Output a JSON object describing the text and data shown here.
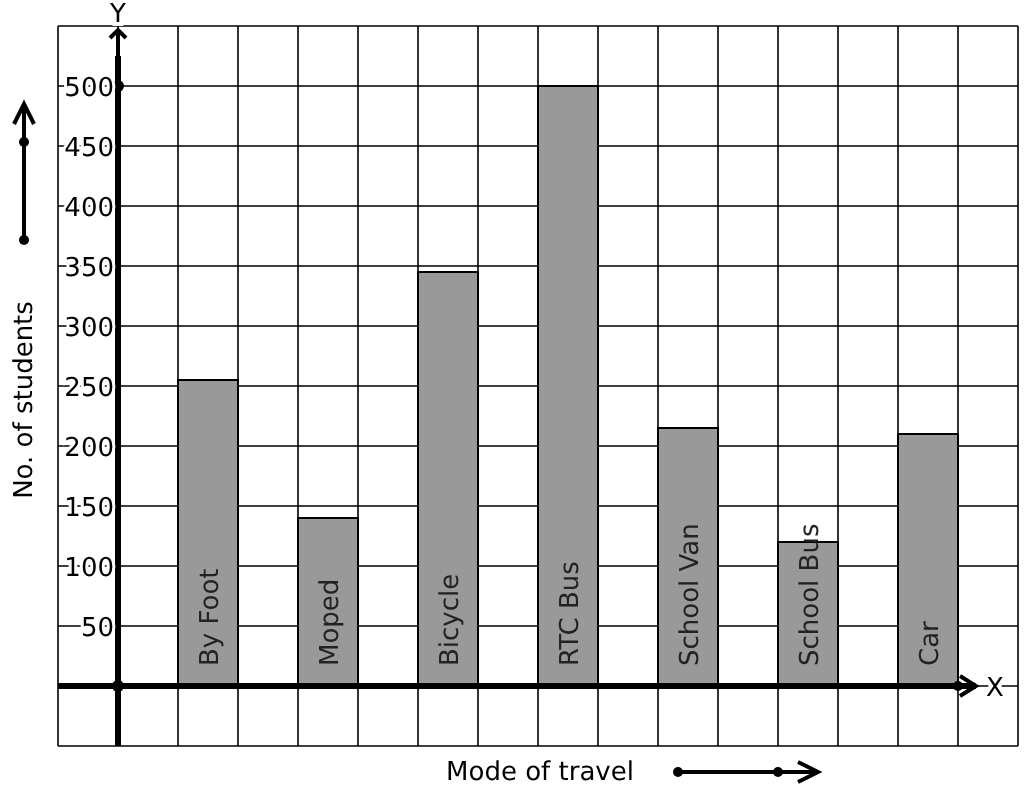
{
  "chart_data": {
    "type": "bar",
    "xlabel": "Mode of travel",
    "ylabel": "No. of students",
    "categories": [
      "By Foot",
      "Moped",
      "Bicycle",
      "RTC Bus",
      "School Van",
      "School Bus",
      "Car"
    ],
    "values": [
      255,
      140,
      345,
      500,
      215,
      120,
      210
    ],
    "color": "#999999",
    "ylim": [
      -50,
      550
    ],
    "yticks": [
      50,
      100,
      150,
      200,
      250,
      300,
      350,
      400,
      450,
      500
    ],
    "grid": true,
    "tick_labels": "y",
    "annotations": [
      "Y",
      "X"
    ]
  }
}
